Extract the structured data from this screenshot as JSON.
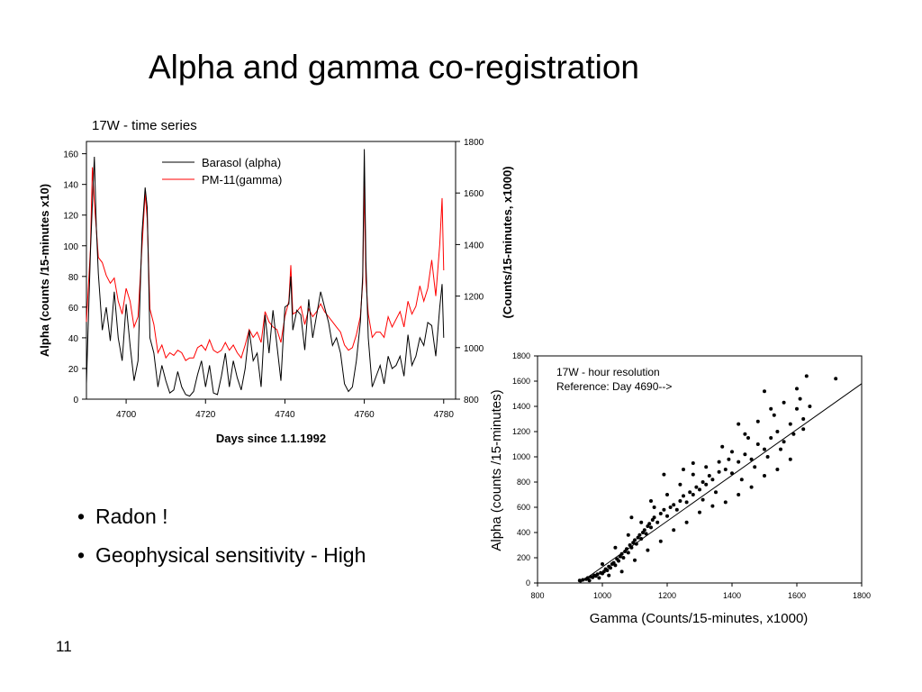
{
  "slide": {
    "title": "Alpha and gamma co-registration",
    "bullets": [
      "Radon !",
      "Geophysical sensitivity - High"
    ],
    "page_number": "11"
  },
  "chart_data": [
    {
      "type": "line",
      "title": "17W - time series",
      "xlabel": "Days since 1.1.1992",
      "ylabel": "Alpha (counts /15-minutes x10)",
      "y2label": "(Counts/15-minutes, x1000)",
      "xlim": [
        4690,
        4783
      ],
      "ylim": [
        0,
        168
      ],
      "y2lim": [
        800,
        1800
      ],
      "xticks": [
        4700,
        4720,
        4740,
        4760,
        4780
      ],
      "yticks": [
        0,
        20,
        40,
        60,
        80,
        100,
        120,
        140,
        160
      ],
      "y2ticks": [
        800,
        1000,
        1200,
        1400,
        1600,
        1800
      ],
      "legend_position": "top-center",
      "series": [
        {
          "name": "Barasol (alpha)",
          "color": "#000000",
          "axis": "left",
          "x": [
            4690,
            4691,
            4691.5,
            4692,
            4692.5,
            4693,
            4694,
            4695,
            4696,
            4697,
            4698,
            4699,
            4700,
            4701,
            4702,
            4703,
            4704,
            4704.8,
            4705.3,
            4706,
            4707,
            4708,
            4709,
            4710,
            4711,
            4712,
            4713,
            4714,
            4715,
            4716,
            4717,
            4718,
            4719,
            4720,
            4721,
            4722,
            4723,
            4724,
            4725,
            4726,
            4727,
            4728,
            4729,
            4730,
            4731,
            4732,
            4733,
            4734,
            4735,
            4736,
            4737,
            4738,
            4739,
            4740,
            4741,
            4741.5,
            4742,
            4743,
            4744,
            4745,
            4746,
            4747,
            4748,
            4749,
            4750,
            4751,
            4752,
            4753,
            4754,
            4755,
            4756,
            4757,
            4758,
            4759,
            4759.6,
            4760,
            4760.4,
            4761,
            4762,
            4763,
            4764,
            4765,
            4766,
            4767,
            4768,
            4769,
            4770,
            4771,
            4772,
            4773,
            4774,
            4775,
            4776,
            4777,
            4778,
            4779,
            4779.6,
            4780
          ],
          "y": [
            10,
            95,
            128,
            158,
            112,
            82,
            45,
            60,
            38,
            70,
            40,
            25,
            62,
            35,
            12,
            25,
            108,
            138,
            125,
            40,
            30,
            8,
            22,
            12,
            4,
            6,
            18,
            8,
            3,
            2,
            5,
            16,
            25,
            8,
            22,
            4,
            3,
            15,
            30,
            8,
            25,
            14,
            6,
            20,
            45,
            25,
            30,
            8,
            55,
            30,
            58,
            35,
            12,
            60,
            62,
            80,
            45,
            58,
            55,
            32,
            65,
            40,
            55,
            70,
            60,
            50,
            35,
            40,
            30,
            10,
            5,
            8,
            25,
            50,
            80,
            163,
            90,
            40,
            8,
            15,
            22,
            10,
            28,
            20,
            22,
            28,
            15,
            42,
            22,
            28,
            40,
            35,
            50,
            48,
            28,
            60,
            75,
            40
          ]
        },
        {
          "name": "PM-11(gamma)",
          "color": "#ff0000",
          "axis": "right",
          "x": [
            4690,
            4691,
            4691.5,
            4692,
            4692.5,
            4693,
            4694,
            4695,
            4696,
            4697,
            4698,
            4699,
            4700,
            4701,
            4702,
            4703,
            4704,
            4704.8,
            4705.3,
            4706,
            4707,
            4708,
            4709,
            4710,
            4711,
            4712,
            4713,
            4714,
            4715,
            4716,
            4717,
            4718,
            4719,
            4720,
            4721,
            4722,
            4723,
            4724,
            4725,
            4726,
            4727,
            4728,
            4729,
            4730,
            4731,
            4732,
            4733,
            4734,
            4735,
            4736,
            4737,
            4738,
            4739,
            4740,
            4741,
            4741.5,
            4742,
            4743,
            4744,
            4745,
            4746,
            4747,
            4748,
            4749,
            4750,
            4751,
            4752,
            4753,
            4754,
            4755,
            4756,
            4757,
            4758,
            4759,
            4759.6,
            4760,
            4760.4,
            4761,
            4762,
            4763,
            4764,
            4765,
            4766,
            4767,
            4768,
            4769,
            4770,
            4771,
            4772,
            4773,
            4774,
            4775,
            4776,
            4777,
            4778,
            4779,
            4779.6,
            4780
          ],
          "y": [
            1100,
            1380,
            1700,
            1560,
            1460,
            1350,
            1330,
            1280,
            1250,
            1270,
            1180,
            1130,
            1230,
            1180,
            1080,
            1120,
            1390,
            1600,
            1500,
            1150,
            1090,
            980,
            1010,
            960,
            980,
            970,
            990,
            980,
            950,
            960,
            960,
            1000,
            1010,
            990,
            1030,
            990,
            980,
            990,
            1020,
            990,
            1010,
            980,
            960,
            1010,
            1070,
            1040,
            1060,
            1020,
            1140,
            1100,
            1080,
            1070,
            1020,
            1120,
            1180,
            1320,
            1130,
            1140,
            1160,
            1090,
            1150,
            1120,
            1140,
            1170,
            1140,
            1120,
            1100,
            1080,
            1060,
            1010,
            990,
            1000,
            1050,
            1120,
            1250,
            1640,
            1260,
            1130,
            1040,
            1060,
            1060,
            1040,
            1120,
            1080,
            1110,
            1140,
            1080,
            1180,
            1130,
            1160,
            1240,
            1180,
            1230,
            1340,
            1200,
            1400,
            1580,
            1300
          ]
        }
      ]
    },
    {
      "type": "scatter",
      "title": "17W - hour resolution",
      "annotation": "Reference: Day 4690-->",
      "xlabel": "Gamma (Counts/15-minutes, x1000)",
      "ylabel": "Alpha (counts /15-minutes)",
      "xlim": [
        800,
        1800
      ],
      "ylim": [
        0,
        1800
      ],
      "xticks": [
        800,
        1000,
        1200,
        1400,
        1600,
        1800
      ],
      "yticks": [
        0,
        200,
        400,
        600,
        800,
        1000,
        1200,
        1400,
        1600,
        1800
      ],
      "grid": false,
      "fit_line": {
        "x": [
          930,
          1800
        ],
        "y": [
          0,
          1580
        ]
      },
      "points": [
        [
          930,
          20
        ],
        [
          940,
          25
        ],
        [
          950,
          30
        ],
        [
          955,
          40
        ],
        [
          960,
          20
        ],
        [
          965,
          50
        ],
        [
          970,
          45
        ],
        [
          975,
          60
        ],
        [
          980,
          55
        ],
        [
          985,
          70
        ],
        [
          990,
          40
        ],
        [
          995,
          80
        ],
        [
          1000,
          75
        ],
        [
          1005,
          90
        ],
        [
          1010,
          110
        ],
        [
          1015,
          100
        ],
        [
          1020,
          130
        ],
        [
          1025,
          120
        ],
        [
          1030,
          150
        ],
        [
          1035,
          160
        ],
        [
          1040,
          140
        ],
        [
          1045,
          190
        ],
        [
          1050,
          175
        ],
        [
          1055,
          210
        ],
        [
          1060,
          230
        ],
        [
          1065,
          200
        ],
        [
          1070,
          250
        ],
        [
          1075,
          270
        ],
        [
          1080,
          240
        ],
        [
          1085,
          300
        ],
        [
          1090,
          280
        ],
        [
          1095,
          320
        ],
        [
          1100,
          340
        ],
        [
          1105,
          310
        ],
        [
          1110,
          360
        ],
        [
          1115,
          380
        ],
        [
          1120,
          350
        ],
        [
          1125,
          400
        ],
        [
          1130,
          420
        ],
        [
          1135,
          390
        ],
        [
          1140,
          450
        ],
        [
          1145,
          470
        ],
        [
          1150,
          440
        ],
        [
          1155,
          500
        ],
        [
          1160,
          520
        ],
        [
          1170,
          480
        ],
        [
          1180,
          550
        ],
        [
          1190,
          580
        ],
        [
          1200,
          530
        ],
        [
          1210,
          600
        ],
        [
          1220,
          620
        ],
        [
          1230,
          580
        ],
        [
          1240,
          650
        ],
        [
          1250,
          690
        ],
        [
          1260,
          640
        ],
        [
          1270,
          720
        ],
        [
          1280,
          700
        ],
        [
          1290,
          760
        ],
        [
          1300,
          740
        ],
        [
          1310,
          800
        ],
        [
          1320,
          780
        ],
        [
          1330,
          850
        ],
        [
          1340,
          820
        ],
        [
          1360,
          880
        ],
        [
          1380,
          900
        ],
        [
          1400,
          870
        ],
        [
          1420,
          960
        ],
        [
          1440,
          1020
        ],
        [
          1460,
          980
        ],
        [
          1480,
          1100
        ],
        [
          1500,
          1060
        ],
        [
          1520,
          1150
        ],
        [
          1540,
          1200
        ],
        [
          1560,
          1120
        ],
        [
          1580,
          1260
        ],
        [
          1600,
          1380
        ],
        [
          1610,
          1460
        ],
        [
          1620,
          1300
        ],
        [
          1630,
          1640
        ],
        [
          1720,
          1620
        ],
        [
          1000,
          150
        ],
        [
          1020,
          60
        ],
        [
          1040,
          280
        ],
        [
          1060,
          90
        ],
        [
          1080,
          380
        ],
        [
          1100,
          180
        ],
        [
          1120,
          480
        ],
        [
          1140,
          260
        ],
        [
          1160,
          600
        ],
        [
          1180,
          330
        ],
        [
          1200,
          700
        ],
        [
          1220,
          420
        ],
        [
          1240,
          780
        ],
        [
          1260,
          480
        ],
        [
          1280,
          860
        ],
        [
          1300,
          560
        ],
        [
          1320,
          920
        ],
        [
          1340,
          610
        ],
        [
          1360,
          960
        ],
        [
          1380,
          640
        ],
        [
          1400,
          1040
        ],
        [
          1420,
          700
        ],
        [
          1440,
          1180
        ],
        [
          1460,
          760
        ],
        [
          1480,
          1280
        ],
        [
          1500,
          850
        ],
        [
          1520,
          1380
        ],
        [
          1540,
          900
        ],
        [
          1560,
          1430
        ],
        [
          1580,
          980
        ],
        [
          1600,
          1540
        ],
        [
          1420,
          1260
        ],
        [
          1450,
          1150
        ],
        [
          1390,
          980
        ],
        [
          1350,
          720
        ],
        [
          1250,
          900
        ],
        [
          1150,
          650
        ],
        [
          1090,
          520
        ],
        [
          1190,
          860
        ],
        [
          1280,
          950
        ],
        [
          1310,
          660
        ],
        [
          1370,
          1080
        ],
        [
          1430,
          820
        ],
        [
          1470,
          920
        ],
        [
          1510,
          1000
        ],
        [
          1550,
          1060
        ],
        [
          1590,
          1180
        ],
        [
          1620,
          1220
        ],
        [
          1640,
          1400
        ],
        [
          1500,
          1520
        ],
        [
          1530,
          1330
        ]
      ]
    }
  ]
}
